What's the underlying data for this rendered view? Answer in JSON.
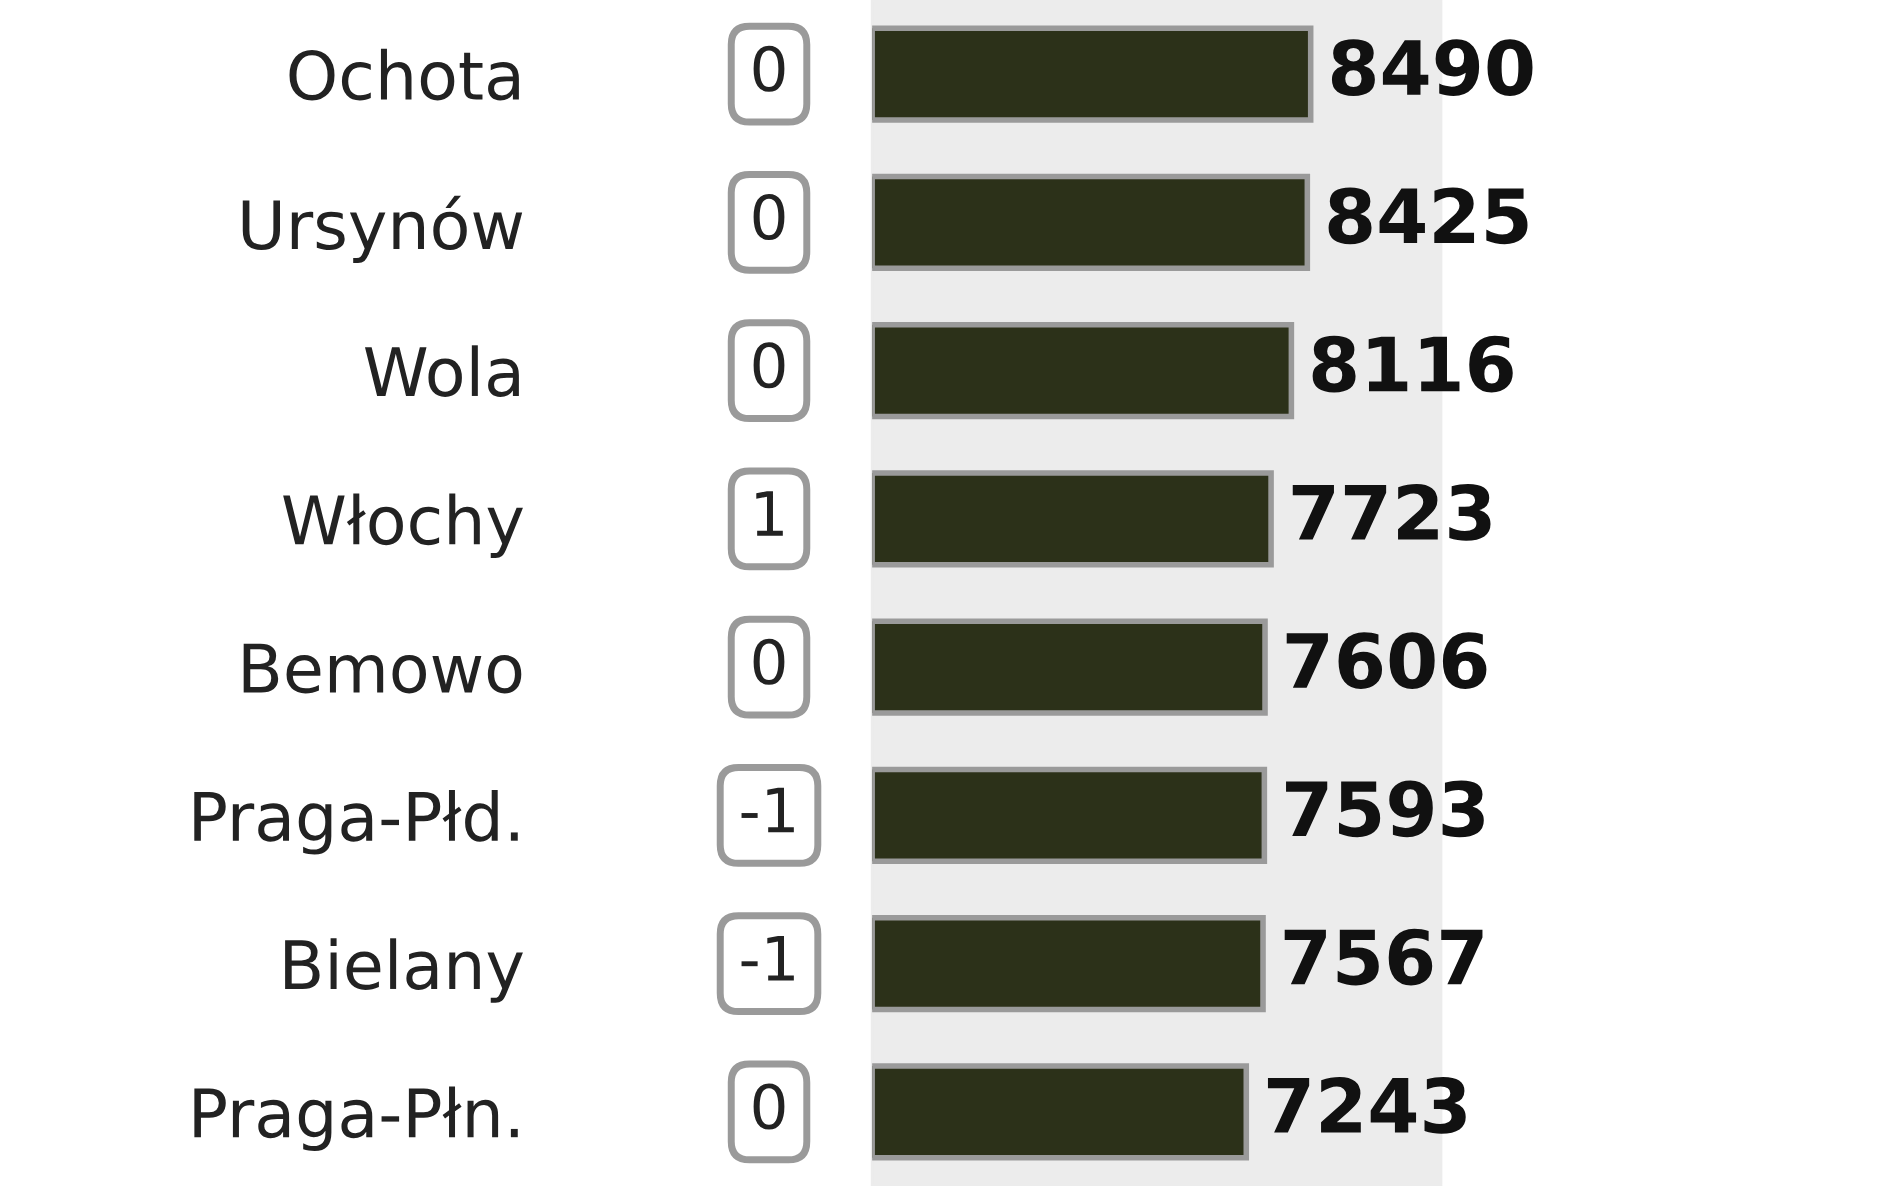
{
  "chart_data": {
    "type": "bar",
    "orientation": "horizontal",
    "categories": [
      "Ochota",
      "Ursynów",
      "Wola",
      "Włochy",
      "Bemowo",
      "Praga-Płd.",
      "Bielany",
      "Praga-Płn."
    ],
    "values": [
      8490,
      8425,
      8116,
      7723,
      7606,
      7593,
      7567,
      7243
    ],
    "color": "#2c3119",
    "data_labels": true,
    "grid": false,
    "legend": false,
    "annotations": [
      "0",
      "0",
      "0",
      "1",
      "0",
      "-1",
      "-1",
      "0"
    ]
  }
}
